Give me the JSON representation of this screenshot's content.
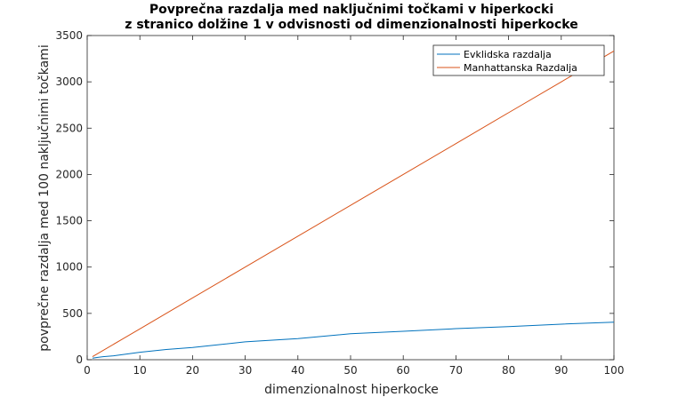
{
  "chart_data": {
    "type": "line",
    "title": "Povprečna razdalja med naključnimi točkami v hiperkocki",
    "subtitle": "z stranico dolžine 1 v odvisnosti od dimenzionalnosti hiperkocke",
    "xlabel": "dimenzionalnost hiperkocke",
    "ylabel": "povprečne razdalja med 100 naključnimi točkami",
    "xlim": [
      0,
      100
    ],
    "ylim": [
      0,
      3500
    ],
    "xticks": [
      0,
      10,
      20,
      30,
      40,
      50,
      60,
      70,
      80,
      90,
      100
    ],
    "yticks": [
      0,
      500,
      1000,
      1500,
      2000,
      2500,
      3000,
      3500
    ],
    "grid": false,
    "legend_position": "top-right",
    "series": [
      {
        "name": "Evklidska razdalja",
        "color": "#0072BD",
        "x": [
          1,
          2,
          3,
          5,
          10,
          15,
          20,
          30,
          40,
          50,
          60,
          70,
          80,
          90,
          100
        ],
        "y": [
          16.5,
          25.7,
          32.5,
          42.3,
          80,
          110,
          132,
          193,
          228,
          280,
          307,
          335,
          357,
          384,
          405
        ]
      },
      {
        "name": "Manhattanska Razdalja",
        "color": "#D95319",
        "x": [
          1,
          10,
          20,
          30,
          40,
          50,
          60,
          70,
          80,
          90,
          100
        ],
        "y": [
          33,
          333,
          667,
          1000,
          1333,
          1667,
          2000,
          2333,
          2667,
          3000,
          3333
        ]
      }
    ]
  }
}
